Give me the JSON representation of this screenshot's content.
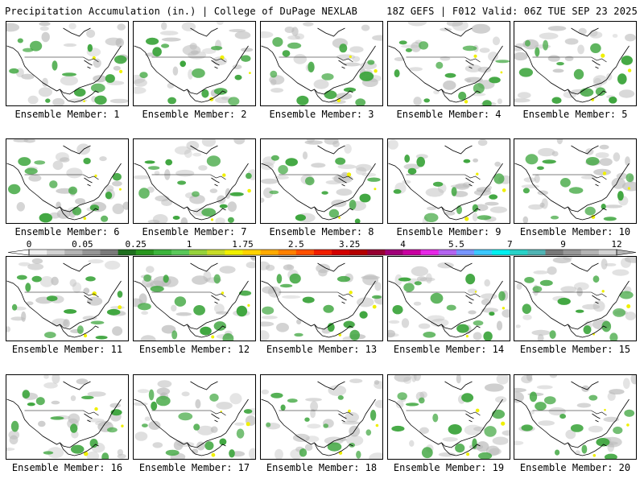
{
  "header": {
    "title_left": "Precipitation Accumulation (in.) | College of DuPage NEXLAB",
    "title_right": "18Z GEFS | F012 Valid: 06Z TUE SEP 23 2025"
  },
  "members": [
    {
      "label": "Ensemble Member: 1"
    },
    {
      "label": "Ensemble Member: 2"
    },
    {
      "label": "Ensemble Member: 3"
    },
    {
      "label": "Ensemble Member: 4"
    },
    {
      "label": "Ensemble Member: 5"
    },
    {
      "label": "Ensemble Member: 6"
    },
    {
      "label": "Ensemble Member: 7"
    },
    {
      "label": "Ensemble Member: 8"
    },
    {
      "label": "Ensemble Member: 9"
    },
    {
      "label": "Ensemble Member: 10"
    },
    {
      "label": "Ensemble Member: 11"
    },
    {
      "label": "Ensemble Member: 12"
    },
    {
      "label": "Ensemble Member: 13"
    },
    {
      "label": "Ensemble Member: 14"
    },
    {
      "label": "Ensemble Member: 15"
    },
    {
      "label": "Ensemble Member: 16"
    },
    {
      "label": "Ensemble Member: 17"
    },
    {
      "label": "Ensemble Member: 18"
    },
    {
      "label": "Ensemble Member: 19"
    },
    {
      "label": "Ensemble Member: 20"
    }
  ],
  "legend": {
    "tick_labels": [
      "0",
      "0.05",
      "0.25",
      "1",
      "1.75",
      "2.5",
      "3.25",
      "4",
      "5.5",
      "7",
      "9",
      "12"
    ],
    "colors": [
      "#f0f0f0",
      "#d2d2d2",
      "#b4b4b4",
      "#969696",
      "#7a7a7a",
      "#1e6e1e",
      "#28961e",
      "#3cb43c",
      "#5ac85a",
      "#96d23c",
      "#c8dc28",
      "#f0f000",
      "#ffd200",
      "#ffaa00",
      "#ff8000",
      "#ff5000",
      "#f01e00",
      "#d20000",
      "#b40000",
      "#960032",
      "#a00078",
      "#c800a0",
      "#e628e6",
      "#b464f0",
      "#7896ff",
      "#3cc8ff",
      "#00f0f0",
      "#28d2c8",
      "#50b4b4",
      "#787878",
      "#969696",
      "#b4b4b4",
      "#d2d2d2"
    ]
  },
  "map_colors": {
    "boundary": "#000000",
    "light_precip": "#3fa63f",
    "heavy_precip": "#f0f000",
    "trace": "#b9b9b9"
  }
}
